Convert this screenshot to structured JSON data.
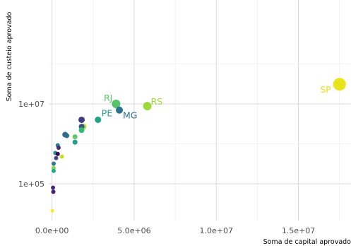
{
  "chart_data": {
    "type": "scatter",
    "xlabel": "Soma de capital aprovado",
    "ylabel": "Soma de custeio aprovado",
    "x_scale": "linear",
    "y_scale": "log10",
    "xlim": [
      -200000,
      18200000
    ],
    "ylim": [
      12000,
      4000000000
    ],
    "x_ticks": [
      0,
      5000000,
      10000000,
      15000000
    ],
    "x_tick_labels": [
      "0.0e+00",
      "5.0e+06",
      "1.0e+07",
      "1.5e+07"
    ],
    "y_ticks": [
      100000,
      10000000
    ],
    "y_tick_labels": [
      "1e+05",
      "1e+07"
    ],
    "grid": true,
    "legend": "none",
    "points": [
      {
        "x": 17500000,
        "y": 31000000,
        "label": "SP",
        "color": "#e8e419",
        "size": 9
      },
      {
        "x": 5800000,
        "y": 8800000,
        "label": "RS",
        "color": "#9bd93c",
        "size": 6
      },
      {
        "x": 3900000,
        "y": 10000000,
        "label": "RJ",
        "color": "#52c569",
        "size": 6
      },
      {
        "x": 4100000,
        "y": 7000000,
        "label": "MG",
        "color": "#2c728e",
        "size": 5
      },
      {
        "x": 2800000,
        "y": 4000000,
        "label": "PE",
        "color": "#20a486",
        "size": 4.5
      },
      {
        "x": 1800000,
        "y": 4000000,
        "label": "",
        "color": "#443983",
        "size": 4.5
      },
      {
        "x": 1900000,
        "y": 2700000,
        "label": "",
        "color": "#addc30",
        "size": 4.5
      },
      {
        "x": 1800000,
        "y": 2700000,
        "label": "",
        "color": "#3b528b",
        "size": 4
      },
      {
        "x": 1800000,
        "y": 2200000,
        "label": "",
        "color": "#35b779",
        "size": 4
      },
      {
        "x": 800000,
        "y": 1700000,
        "label": "",
        "color": "#31688e",
        "size": 4
      },
      {
        "x": 900000,
        "y": 1600000,
        "label": "",
        "color": "#2d708e",
        "size": 3.5
      },
      {
        "x": 1400000,
        "y": 1500000,
        "label": "",
        "color": "#5ec962",
        "size": 3.5
      },
      {
        "x": 1400000,
        "y": 1100000,
        "label": "",
        "color": "#1f9e89",
        "size": 3.5
      },
      {
        "x": 350000,
        "y": 920000,
        "label": "",
        "color": "#25848e",
        "size": 3
      },
      {
        "x": 400000,
        "y": 800000,
        "label": "",
        "color": "#482878",
        "size": 3
      },
      {
        "x": 200000,
        "y": 590000,
        "label": "",
        "color": "#21918c",
        "size": 3
      },
      {
        "x": 350000,
        "y": 560000,
        "label": "",
        "color": "#440154",
        "size": 3
      },
      {
        "x": 600000,
        "y": 480000,
        "label": "",
        "color": "#c2df23",
        "size": 3
      },
      {
        "x": 250000,
        "y": 440000,
        "label": "",
        "color": "#3e4a89",
        "size": 3
      },
      {
        "x": 100000,
        "y": 320000,
        "label": "",
        "color": "#287c8e",
        "size": 3
      },
      {
        "x": 100000,
        "y": 250000,
        "label": "",
        "color": "#86d549",
        "size": 3
      },
      {
        "x": 100000,
        "y": 210000,
        "label": "",
        "color": "#22a884",
        "size": 3
      },
      {
        "x": 60000,
        "y": 80000,
        "label": "",
        "color": "#472d7b",
        "size": 3
      },
      {
        "x": 80000,
        "y": 63000,
        "label": "",
        "color": "#481f70",
        "size": 3
      },
      {
        "x": 20000,
        "y": 21000,
        "label": "",
        "color": "#fde725",
        "size": 2.5
      }
    ]
  }
}
